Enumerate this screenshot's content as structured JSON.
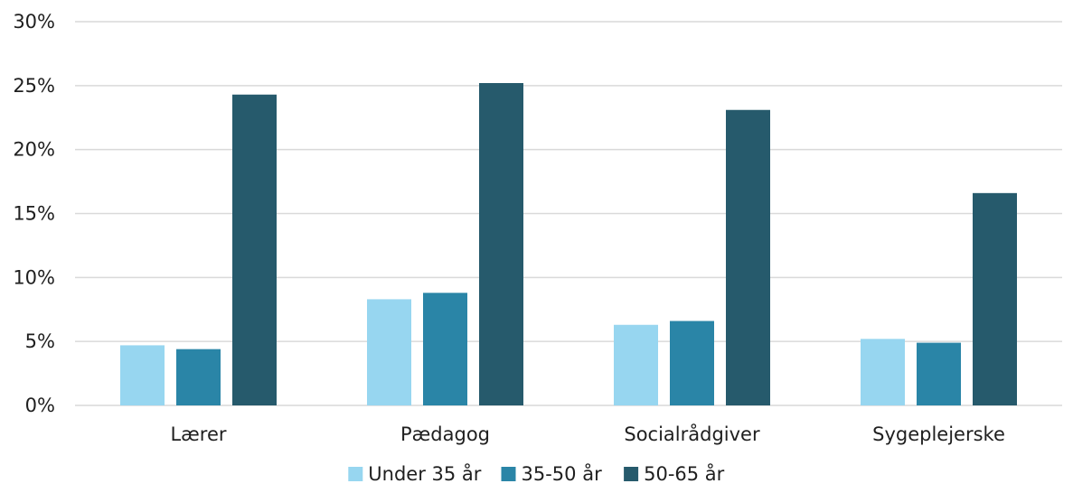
{
  "chart_data": {
    "type": "bar",
    "categories": [
      "Lærer",
      "Pædagog",
      "Socialrådgiver",
      "Sygeplejerske"
    ],
    "series": [
      {
        "name": "Under 35 år",
        "color": "#97d6f0",
        "values": [
          4.7,
          8.3,
          6.3,
          5.2
        ]
      },
      {
        "name": "35-50 år",
        "color": "#2a85a7",
        "values": [
          4.4,
          8.8,
          6.6,
          4.9
        ]
      },
      {
        "name": "50-65 år",
        "color": "#265a6c",
        "values": [
          24.3,
          25.2,
          23.1,
          16.6
        ]
      }
    ],
    "ylim": [
      0,
      30
    ],
    "y_ticks": [
      0,
      5,
      10,
      15,
      20,
      25,
      30
    ],
    "y_tick_labels": [
      "0%",
      "5%",
      "10%",
      "15%",
      "20%",
      "25%",
      "30%"
    ],
    "grid": true,
    "gridline_color": "#d9d9d9",
    "legend_placement": "bottom-center",
    "title": "",
    "xlabel": "",
    "ylabel": ""
  }
}
